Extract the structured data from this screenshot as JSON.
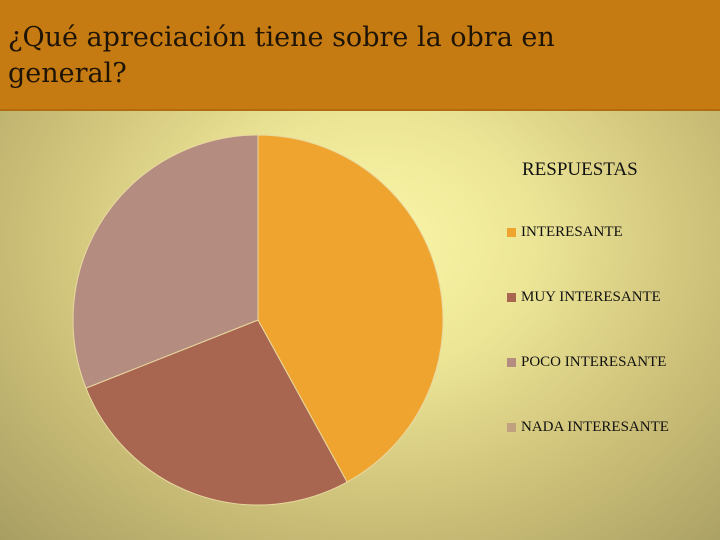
{
  "slide": {
    "title": "¿Qué apreciación tiene sobre la obra en general?"
  },
  "chart_data": {
    "type": "pie",
    "legend_title": "RESPUESTAS",
    "legend_position": "right",
    "categories": [
      "INTERESANTE",
      "MUY INTERESANTE",
      "POCO INTERESANTE",
      "NADA INTERESANTE"
    ],
    "values": [
      42,
      27,
      31,
      0
    ],
    "colors": [
      "#f0a430",
      "#a86550",
      "#b58c80",
      "#c1a080"
    ],
    "start_angle": "top",
    "direction": "clockwise"
  }
}
